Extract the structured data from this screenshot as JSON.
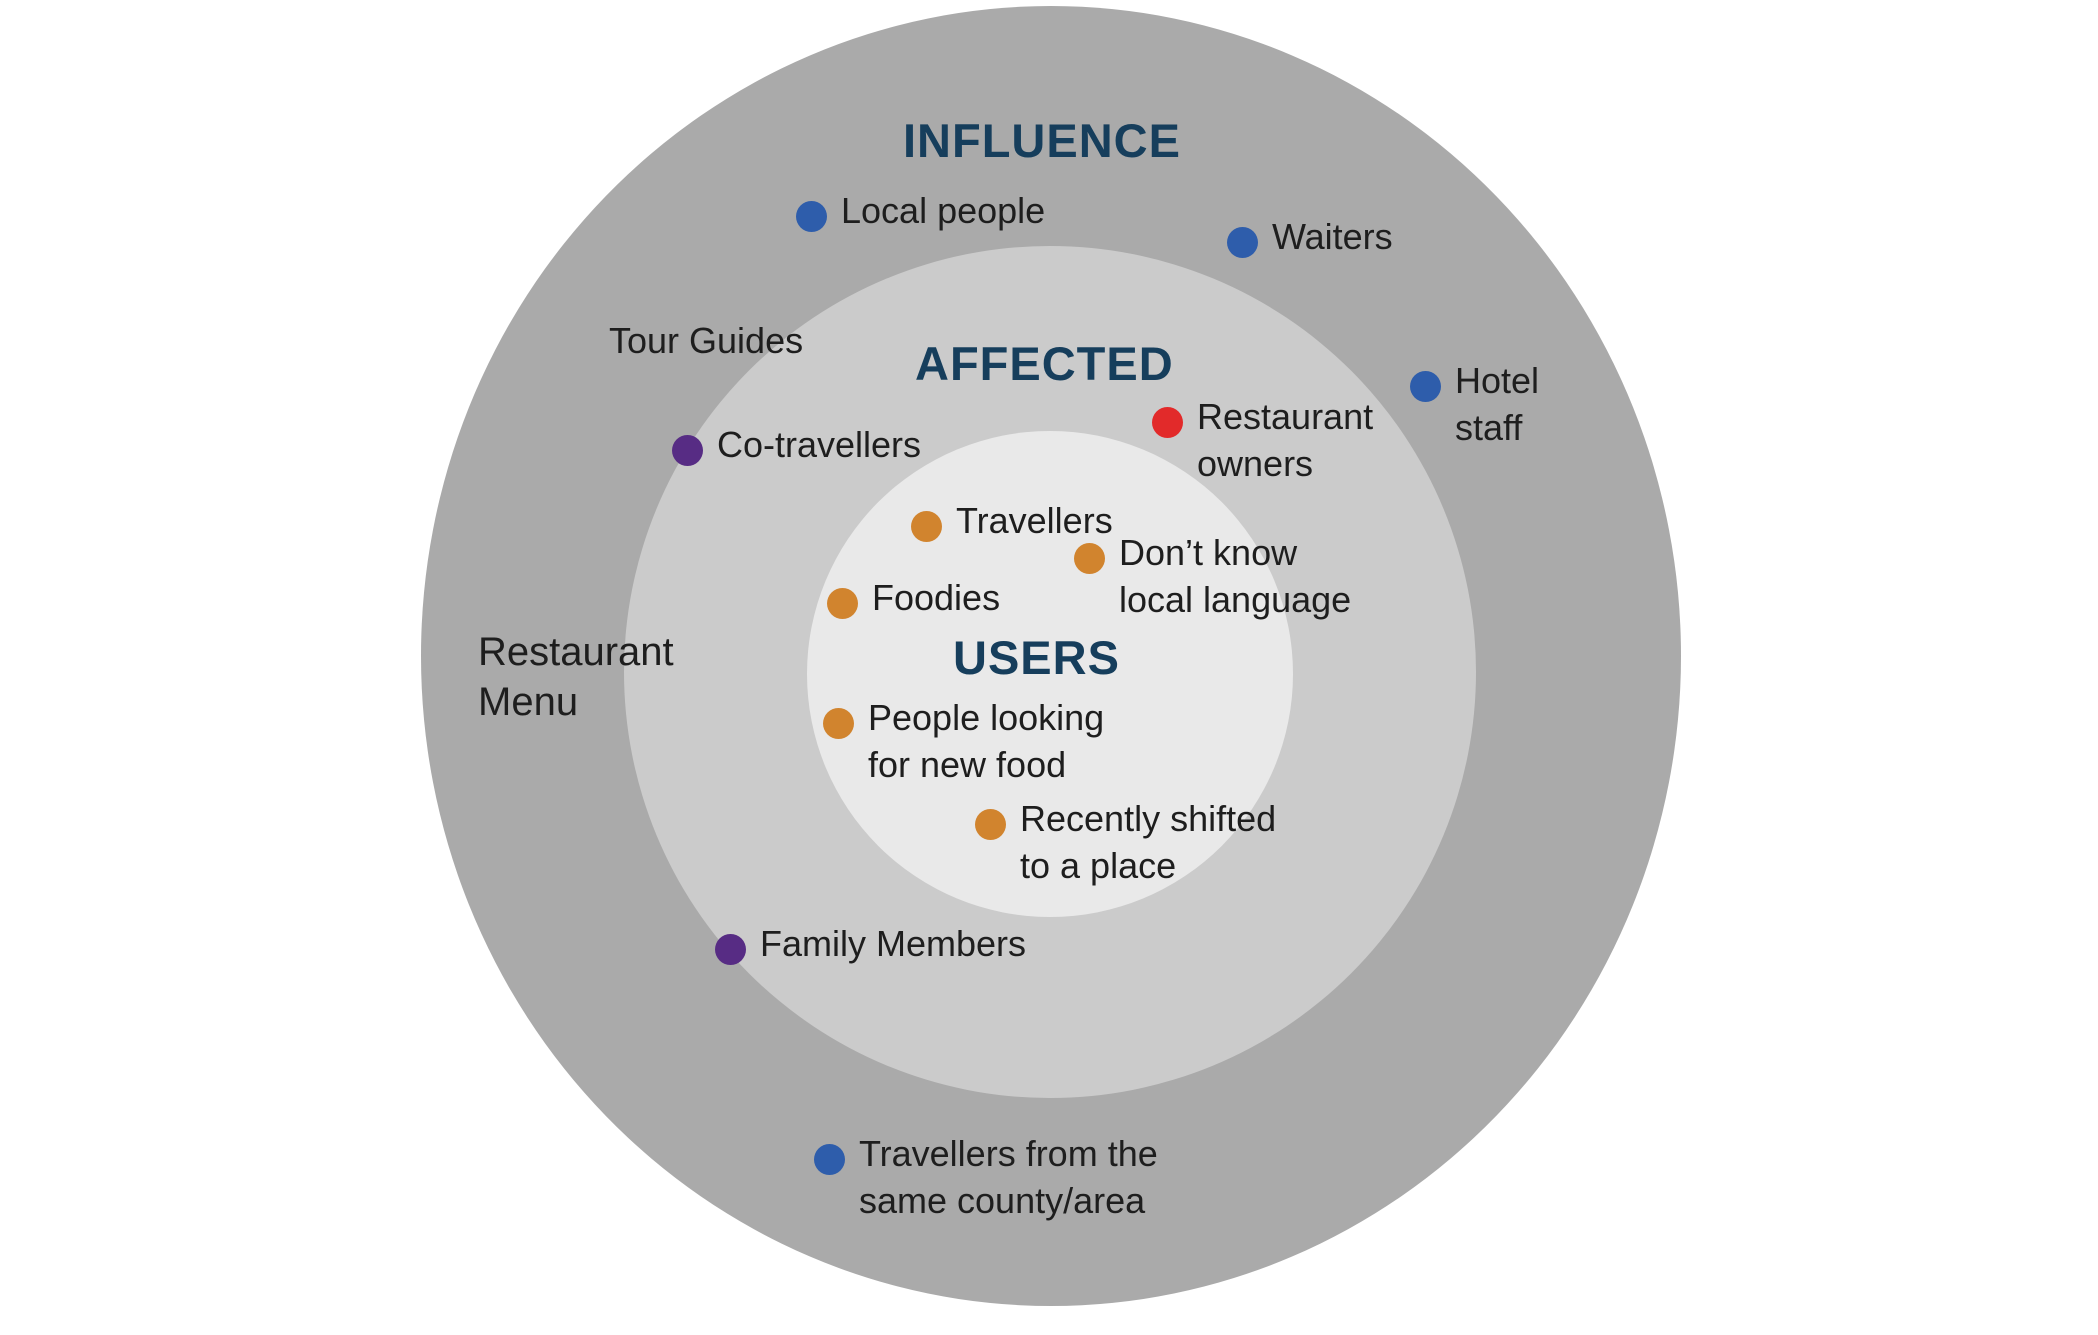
{
  "rings": {
    "influence": {
      "title": "INFLUENCE"
    },
    "affected": {
      "title": "AFFECTED"
    },
    "users": {
      "title": "USERS"
    }
  },
  "items": {
    "local_people": {
      "label": "Local people",
      "dot_color": "#2e5dab"
    },
    "waiters": {
      "label": "Waiters",
      "dot_color": "#2e5dab"
    },
    "hotel_staff": {
      "label": "Hotel\nstaff",
      "dot_color": "#2e5dab"
    },
    "tour_guides": {
      "label": "Tour Guides"
    },
    "restaurant_menu": {
      "label": "Restaurant\nMenu"
    },
    "travellers_same_area": {
      "label": "Travellers from the\nsame county/area",
      "dot_color": "#2e5dab"
    },
    "co_travellers": {
      "label": "Co-travellers",
      "dot_color": "#572c84"
    },
    "family_members": {
      "label": "Family Members",
      "dot_color": "#572c84"
    },
    "restaurant_owners": {
      "label": "Restaurant\nowners",
      "dot_color": "#e22a2a"
    },
    "travellers": {
      "label": "Travellers",
      "dot_color": "#d1842e"
    },
    "dont_know_language": {
      "label": "Don’t know\nlocal language",
      "dot_color": "#d1842e"
    },
    "foodies": {
      "label": "Foodies",
      "dot_color": "#d1842e"
    },
    "new_food": {
      "label": "People looking\nfor new food",
      "dot_color": "#d1842e"
    },
    "recently_shifted": {
      "label": "Recently shifted\nto a place",
      "dot_color": "#d1842e"
    }
  }
}
